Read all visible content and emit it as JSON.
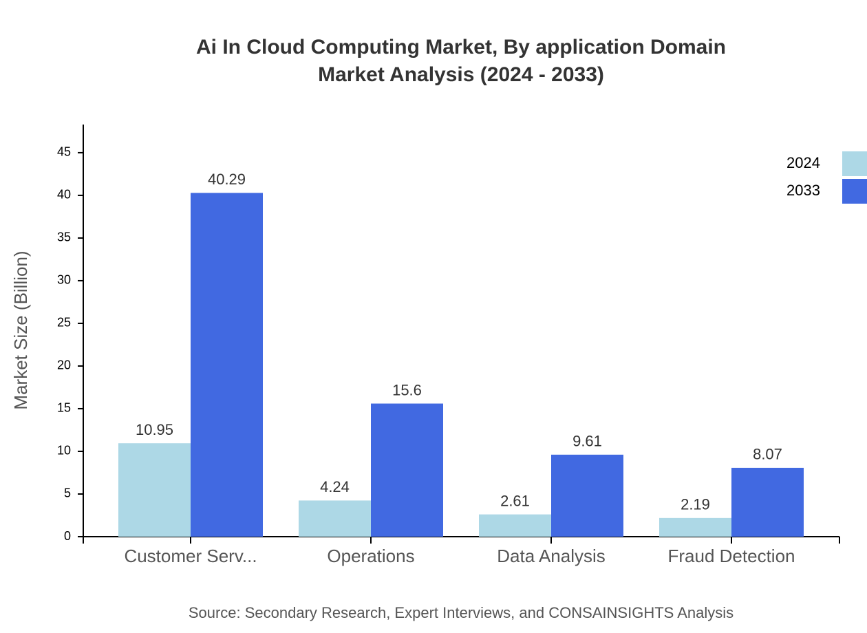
{
  "chart_data": {
    "type": "bar",
    "title": [
      "Ai In Cloud Computing Market, By application Domain",
      "Market Analysis (2024 - 2033)"
    ],
    "y_label": "Market Size (Billion)",
    "source": "Source: Secondary Research, Expert Interviews, and CONSAINSIGHTS Analysis",
    "categories": [
      "Customer Serv...",
      "Operations",
      "Data Analysis",
      "Fraud Detection"
    ],
    "series": [
      {
        "name": "2024",
        "color": "#add8e6",
        "values": [
          10.95,
          4.24,
          2.61,
          2.19
        ]
      },
      {
        "name": "2033",
        "color": "#4169e1",
        "values": [
          40.29,
          15.6,
          9.61,
          8.07
        ]
      }
    ],
    "ylim": [
      0,
      48.3
    ],
    "yticks": [
      0,
      5,
      10,
      15,
      20,
      25,
      30,
      35,
      40,
      45
    ],
    "legend": "top-right"
  }
}
